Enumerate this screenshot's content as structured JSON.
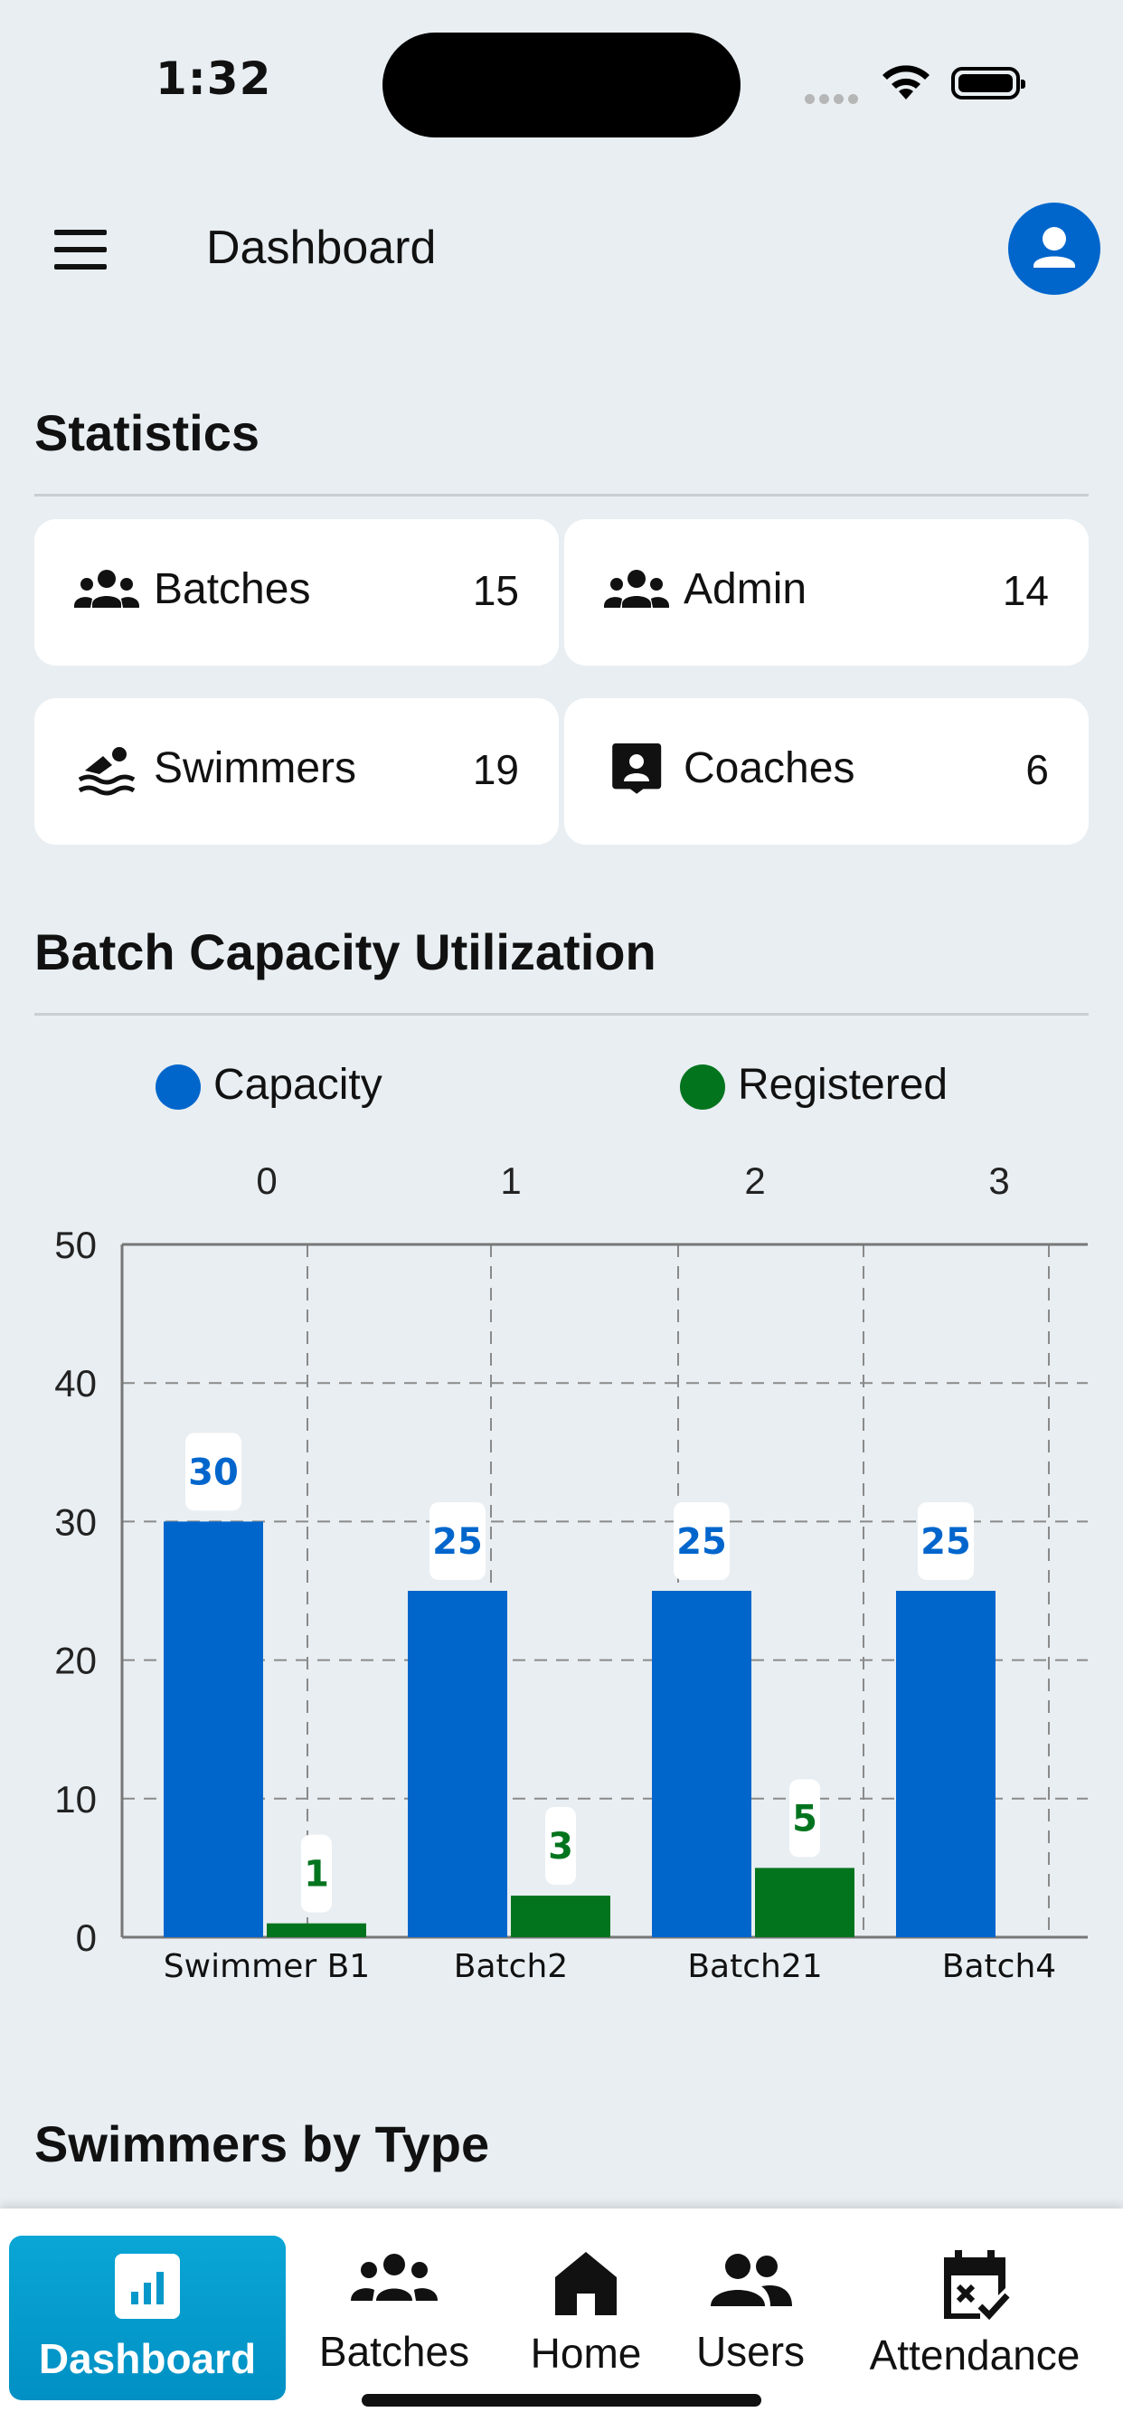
{
  "status_bar": {
    "time": "1:32"
  },
  "header": {
    "title": "Dashboard"
  },
  "statistics": {
    "title": "Statistics",
    "cards": [
      {
        "label": "Batches",
        "value": "15",
        "icon": "group-icon"
      },
      {
        "label": "Admin",
        "value": "14",
        "icon": "group-icon"
      },
      {
        "label": "Swimmers",
        "value": "19",
        "icon": "swimmer-icon"
      },
      {
        "label": "Coaches",
        "value": "6",
        "icon": "contact-badge-icon"
      }
    ]
  },
  "capacity": {
    "title": "Batch Capacity Utilization",
    "legend": {
      "capacity": "Capacity",
      "registered": "Registered"
    }
  },
  "chart_data": {
    "type": "bar",
    "categories": [
      "Swimmer B1",
      "Batch2",
      "Batch21",
      "Batch4"
    ],
    "top_axis_ticks": [
      "0",
      "1",
      "2",
      "3"
    ],
    "y_ticks": [
      "0",
      "10",
      "20",
      "30",
      "40",
      "50"
    ],
    "ylim": [
      0,
      50
    ],
    "series": [
      {
        "name": "Capacity",
        "values": [
          30,
          25,
          25,
          25
        ],
        "color": "#0066cc",
        "labels": [
          "30",
          "25",
          "25",
          "25"
        ]
      },
      {
        "name": "Registered",
        "values": [
          1,
          3,
          5,
          0
        ],
        "color": "#03741e",
        "labels": [
          "1",
          "3",
          "5",
          ""
        ]
      }
    ],
    "grid": true,
    "legend_position": "top"
  },
  "swimmers_by_type": {
    "title": "Swimmers by Type"
  },
  "bottom_nav": [
    {
      "label": "Dashboard",
      "active": true
    },
    {
      "label": "Batches"
    },
    {
      "label": "Home"
    },
    {
      "label": "Users"
    },
    {
      "label": "Attendance"
    }
  ],
  "colors": {
    "accent": "#0066cc",
    "registered": "#03741e",
    "nav_active": "#0aa6d6"
  }
}
